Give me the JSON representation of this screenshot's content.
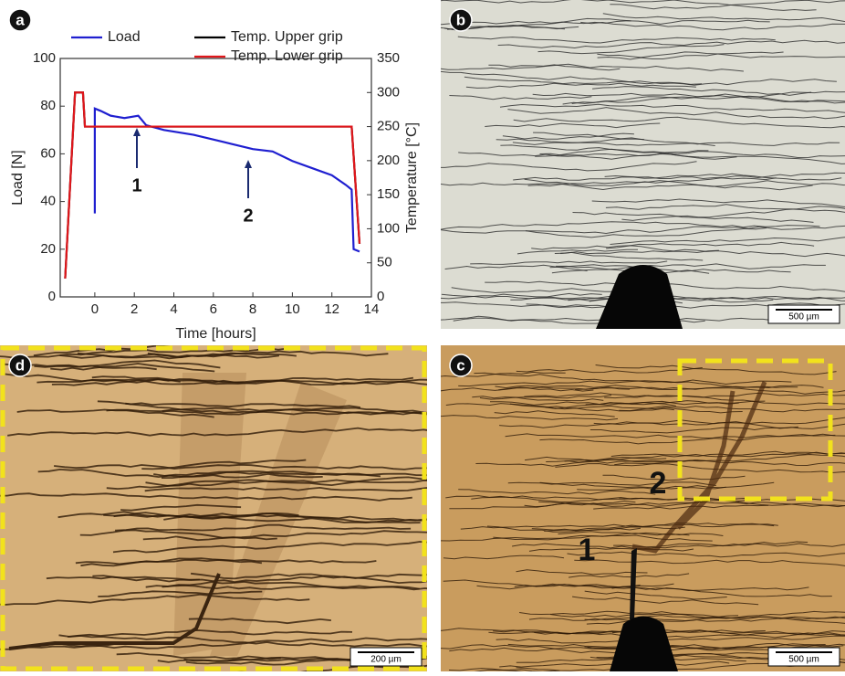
{
  "chart_data": {
    "type": "line",
    "xlabel": "Time [hours]",
    "ylabel": "Load [N]",
    "y2label": "Temperature [°C]",
    "xlim": [
      -1.75,
      14
    ],
    "xticks": [
      0,
      2,
      4,
      6,
      8,
      10,
      12,
      14
    ],
    "ylim": [
      0,
      100
    ],
    "yticks": [
      0,
      20,
      40,
      60,
      80,
      100
    ],
    "y2lim": [
      0,
      350
    ],
    "y2ticks": [
      0,
      50,
      100,
      150,
      200,
      250,
      300,
      350
    ],
    "grid": false,
    "legend": "top",
    "series": [
      {
        "name": "Load",
        "color": "#1f1fd0",
        "axis": "y",
        "x": [
          0,
          0,
          0.3,
          0.8,
          1.5,
          2.2,
          2.6,
          3.5,
          5,
          6.5,
          8,
          9,
          10,
          11,
          12,
          12.7,
          13,
          13.1,
          13.4
        ],
        "values": [
          35,
          79,
          78,
          76,
          75,
          76,
          72,
          70,
          68,
          65,
          62,
          61,
          57,
          54,
          51,
          47,
          45,
          20,
          19
        ]
      },
      {
        "name": "Temp. Upper grip",
        "color": "#000000",
        "axis": "y2",
        "x": [
          -1.5,
          -1.0,
          -0.6,
          -0.5,
          13.0,
          13.4
        ],
        "values": [
          27,
          300,
          300,
          250,
          250,
          78
        ]
      },
      {
        "name": "Temp. Lower grip",
        "color": "#e0161b",
        "axis": "y2",
        "x": [
          -1.5,
          -1.0,
          -0.6,
          -0.5,
          13.0,
          13.4
        ],
        "values": [
          27,
          300,
          300,
          250,
          250,
          78
        ]
      }
    ],
    "annotations": [
      "1",
      "2"
    ]
  },
  "panels": [
    {
      "label": "a"
    },
    {
      "label": "b",
      "scale_bar": "500 µm"
    },
    {
      "label": "d",
      "scale_bar": "200 µm"
    },
    {
      "label": "c",
      "scale_bar": "500 µm",
      "annotations": [
        "1",
        "2"
      ]
    }
  ]
}
